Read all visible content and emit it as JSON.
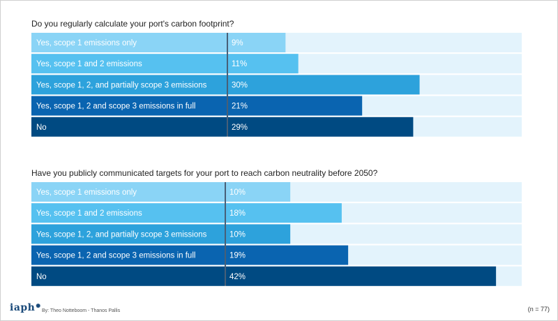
{
  "footer": {
    "logo": "iaph",
    "credit": "By: Theo Notteboom - Thanos Pallis",
    "sample_size": "(n = 77)"
  },
  "colors": {
    "shades": [
      "#8ad4f6",
      "#56c1f0",
      "#2da2dc",
      "#0a64b0",
      "#004a82"
    ],
    "track": "#e3f3fc",
    "label_text": "#ffffff"
  },
  "chart_data": [
    {
      "type": "bar",
      "orientation": "horizontal",
      "title": "Do you regularly calculate your port's carbon footprint?",
      "categories": [
        "Yes, scope 1 emissions only",
        "Yes, scope 1 and 2 emissions",
        "Yes, scope 1, 2, and partially scope 3 emissions",
        "Yes, scope 1, 2 and scope 3 emissions in full",
        "No"
      ],
      "values": [
        9,
        11,
        30,
        21,
        29
      ],
      "value_labels": [
        "9%",
        "11%",
        "30%",
        "21%",
        "29%"
      ],
      "unit": "%",
      "xlim": [
        0,
        46
      ]
    },
    {
      "type": "bar",
      "orientation": "horizontal",
      "title": "Have you publicly communicated targets for your port to reach carbon neutrality before 2050?",
      "categories": [
        "Yes, scope 1 emissions only",
        "Yes, scope 1 and 2 emissions",
        "Yes, scope 1, 2, and partially scope 3 emissions",
        "Yes, scope 1, 2 and scope 3 emissions in full",
        "No"
      ],
      "values": [
        10,
        18,
        10,
        19,
        42
      ],
      "value_labels": [
        "10%",
        "18%",
        "10%",
        "19%",
        "42%"
      ],
      "unit": "%",
      "xlim": [
        0,
        46
      ]
    }
  ]
}
